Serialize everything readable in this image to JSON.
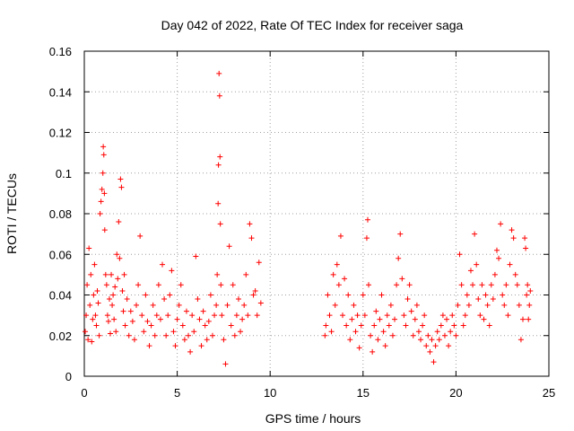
{
  "chart_data": {
    "type": "scatter",
    "title": "Day 042 of 2022, Rate Of TEC Index for receiver saga",
    "xlabel": "GPS time / hours",
    "ylabel": "ROTI / TECUs",
    "xlim": [
      0,
      25
    ],
    "ylim": [
      0,
      0.16
    ],
    "xticks": [
      0,
      5,
      10,
      15,
      20,
      25
    ],
    "xtick_labels": [
      "0",
      "5",
      "10",
      "15",
      "20",
      "25"
    ],
    "yticks": [
      0,
      0.02,
      0.04,
      0.06,
      0.08,
      0.1,
      0.12,
      0.14,
      0.16
    ],
    "ytick_labels": [
      "0",
      "0.02",
      "0.04",
      "0.06",
      "0.08",
      "0.1",
      "0.12",
      "0.14",
      "0.16"
    ],
    "grid": true,
    "marker": "+",
    "color": "#ff0000",
    "series": [
      {
        "name": "ROTI",
        "points": [
          [
            0.05,
            0.022
          ],
          [
            0.1,
            0.03
          ],
          [
            0.15,
            0.045
          ],
          [
            0.2,
            0.018
          ],
          [
            0.25,
            0.063
          ],
          [
            0.3,
            0.035
          ],
          [
            0.35,
            0.05
          ],
          [
            0.4,
            0.017
          ],
          [
            0.45,
            0.028
          ],
          [
            0.5,
            0.04
          ],
          [
            0.55,
            0.055
          ],
          [
            0.6,
            0.03
          ],
          [
            0.65,
            0.025
          ],
          [
            0.7,
            0.042
          ],
          [
            0.75,
            0.036
          ],
          [
            0.8,
            0.02
          ],
          [
            0.85,
            0.08
          ],
          [
            0.9,
            0.086
          ],
          [
            0.95,
            0.092
          ],
          [
            1.0,
            0.1
          ],
          [
            1.02,
            0.113
          ],
          [
            1.05,
            0.109
          ],
          [
            1.08,
            0.09
          ],
          [
            1.1,
            0.072
          ],
          [
            1.15,
            0.05
          ],
          [
            1.2,
            0.045
          ],
          [
            1.25,
            0.03
          ],
          [
            1.3,
            0.027
          ],
          [
            1.35,
            0.038
          ],
          [
            1.4,
            0.021
          ],
          [
            1.45,
            0.05
          ],
          [
            1.5,
            0.035
          ],
          [
            1.55,
            0.04
          ],
          [
            1.6,
            0.028
          ],
          [
            1.65,
            0.044
          ],
          [
            1.7,
            0.022
          ],
          [
            1.75,
            0.06
          ],
          [
            1.8,
            0.048
          ],
          [
            1.85,
            0.076
          ],
          [
            1.9,
            0.058
          ],
          [
            1.95,
            0.097
          ],
          [
            2.0,
            0.093
          ],
          [
            2.05,
            0.042
          ],
          [
            2.1,
            0.032
          ],
          [
            2.15,
            0.05
          ],
          [
            2.2,
            0.025
          ],
          [
            2.3,
            0.038
          ],
          [
            2.4,
            0.02
          ],
          [
            2.5,
            0.032
          ],
          [
            2.6,
            0.027
          ],
          [
            2.7,
            0.018
          ],
          [
            2.8,
            0.035
          ],
          [
            2.9,
            0.045
          ],
          [
            3.0,
            0.069
          ],
          [
            3.1,
            0.03
          ],
          [
            3.2,
            0.022
          ],
          [
            3.3,
            0.04
          ],
          [
            3.4,
            0.027
          ],
          [
            3.5,
            0.015
          ],
          [
            3.6,
            0.025
          ],
          [
            3.7,
            0.035
          ],
          [
            3.8,
            0.02
          ],
          [
            3.9,
            0.03
          ],
          [
            4.0,
            0.045
          ],
          [
            4.1,
            0.028
          ],
          [
            4.2,
            0.055
          ],
          [
            4.3,
            0.038
          ],
          [
            4.4,
            0.02
          ],
          [
            4.5,
            0.03
          ],
          [
            4.6,
            0.04
          ],
          [
            4.7,
            0.052
          ],
          [
            4.8,
            0.022
          ],
          [
            4.9,
            0.015
          ],
          [
            5.0,
            0.028
          ],
          [
            5.1,
            0.035
          ],
          [
            5.2,
            0.045
          ],
          [
            5.3,
            0.025
          ],
          [
            5.4,
            0.018
          ],
          [
            5.5,
            0.032
          ],
          [
            5.6,
            0.02
          ],
          [
            5.7,
            0.012
          ],
          [
            5.8,
            0.03
          ],
          [
            5.9,
            0.022
          ],
          [
            6.0,
            0.059
          ],
          [
            6.1,
            0.038
          ],
          [
            6.2,
            0.028
          ],
          [
            6.3,
            0.015
          ],
          [
            6.4,
            0.032
          ],
          [
            6.5,
            0.025
          ],
          [
            6.6,
            0.018
          ],
          [
            6.7,
            0.027
          ],
          [
            6.8,
            0.04
          ],
          [
            6.9,
            0.02
          ],
          [
            7.0,
            0.03
          ],
          [
            7.1,
            0.035
          ],
          [
            7.15,
            0.05
          ],
          [
            7.2,
            0.085
          ],
          [
            7.22,
            0.104
          ],
          [
            7.25,
            0.149
          ],
          [
            7.28,
            0.138
          ],
          [
            7.3,
            0.108
          ],
          [
            7.32,
            0.075
          ],
          [
            7.35,
            0.045
          ],
          [
            7.4,
            0.03
          ],
          [
            7.5,
            0.018
          ],
          [
            7.6,
            0.006
          ],
          [
            7.7,
            0.035
          ],
          [
            7.8,
            0.064
          ],
          [
            7.9,
            0.025
          ],
          [
            8.0,
            0.045
          ],
          [
            8.1,
            0.02
          ],
          [
            8.2,
            0.03
          ],
          [
            8.3,
            0.038
          ],
          [
            8.4,
            0.022
          ],
          [
            8.5,
            0.028
          ],
          [
            8.6,
            0.035
          ],
          [
            8.7,
            0.05
          ],
          [
            8.8,
            0.03
          ],
          [
            8.9,
            0.075
          ],
          [
            9.0,
            0.068
          ],
          [
            9.1,
            0.04
          ],
          [
            9.2,
            0.042
          ],
          [
            9.3,
            0.03
          ],
          [
            9.4,
            0.056
          ],
          [
            9.5,
            0.036
          ],
          [
            12.95,
            0.02
          ],
          [
            13.0,
            0.025
          ],
          [
            13.1,
            0.04
          ],
          [
            13.2,
            0.03
          ],
          [
            13.3,
            0.022
          ],
          [
            13.4,
            0.05
          ],
          [
            13.5,
            0.035
          ],
          [
            13.6,
            0.055
          ],
          [
            13.7,
            0.045
          ],
          [
            13.8,
            0.069
          ],
          [
            13.9,
            0.03
          ],
          [
            14.0,
            0.048
          ],
          [
            14.1,
            0.025
          ],
          [
            14.2,
            0.04
          ],
          [
            14.3,
            0.018
          ],
          [
            14.4,
            0.028
          ],
          [
            14.5,
            0.035
          ],
          [
            14.6,
            0.022
          ],
          [
            14.7,
            0.03
          ],
          [
            14.8,
            0.014
          ],
          [
            14.9,
            0.025
          ],
          [
            15.0,
            0.04
          ],
          [
            15.1,
            0.03
          ],
          [
            15.2,
            0.068
          ],
          [
            15.25,
            0.077
          ],
          [
            15.3,
            0.045
          ],
          [
            15.4,
            0.02
          ],
          [
            15.5,
            0.012
          ],
          [
            15.6,
            0.025
          ],
          [
            15.7,
            0.032
          ],
          [
            15.8,
            0.018
          ],
          [
            15.9,
            0.028
          ],
          [
            16.0,
            0.04
          ],
          [
            16.1,
            0.022
          ],
          [
            16.2,
            0.015
          ],
          [
            16.3,
            0.03
          ],
          [
            16.4,
            0.025
          ],
          [
            16.5,
            0.035
          ],
          [
            16.6,
            0.02
          ],
          [
            16.7,
            0.028
          ],
          [
            16.8,
            0.045
          ],
          [
            16.9,
            0.058
          ],
          [
            17.0,
            0.07
          ],
          [
            17.1,
            0.048
          ],
          [
            17.2,
            0.03
          ],
          [
            17.3,
            0.025
          ],
          [
            17.4,
            0.038
          ],
          [
            17.5,
            0.045
          ],
          [
            17.6,
            0.032
          ],
          [
            17.7,
            0.02
          ],
          [
            17.8,
            0.028
          ],
          [
            17.9,
            0.035
          ],
          [
            18.0,
            0.022
          ],
          [
            18.1,
            0.018
          ],
          [
            18.2,
            0.025
          ],
          [
            18.3,
            0.03
          ],
          [
            18.4,
            0.015
          ],
          [
            18.5,
            0.02
          ],
          [
            18.6,
            0.012
          ],
          [
            18.7,
            0.018
          ],
          [
            18.8,
            0.007
          ],
          [
            18.9,
            0.015
          ],
          [
            19.0,
            0.022
          ],
          [
            19.1,
            0.018
          ],
          [
            19.2,
            0.025
          ],
          [
            19.3,
            0.03
          ],
          [
            19.4,
            0.02
          ],
          [
            19.5,
            0.028
          ],
          [
            19.6,
            0.015
          ],
          [
            19.7,
            0.022
          ],
          [
            19.8,
            0.03
          ],
          [
            19.9,
            0.025
          ],
          [
            20.0,
            0.02
          ],
          [
            20.1,
            0.035
          ],
          [
            20.2,
            0.06
          ],
          [
            20.3,
            0.045
          ],
          [
            20.4,
            0.025
          ],
          [
            20.5,
            0.03
          ],
          [
            20.6,
            0.04
          ],
          [
            20.7,
            0.035
          ],
          [
            20.8,
            0.052
          ],
          [
            20.9,
            0.045
          ],
          [
            21.0,
            0.07
          ],
          [
            21.1,
            0.055
          ],
          [
            21.2,
            0.038
          ],
          [
            21.3,
            0.03
          ],
          [
            21.4,
            0.045
          ],
          [
            21.5,
            0.028
          ],
          [
            21.6,
            0.04
          ],
          [
            21.7,
            0.035
          ],
          [
            21.8,
            0.025
          ],
          [
            21.9,
            0.045
          ],
          [
            22.0,
            0.038
          ],
          [
            22.1,
            0.05
          ],
          [
            22.2,
            0.062
          ],
          [
            22.3,
            0.058
          ],
          [
            22.4,
            0.075
          ],
          [
            22.5,
            0.04
          ],
          [
            22.6,
            0.035
          ],
          [
            22.7,
            0.045
          ],
          [
            22.8,
            0.03
          ],
          [
            22.9,
            0.055
          ],
          [
            23.0,
            0.072
          ],
          [
            23.1,
            0.068
          ],
          [
            23.2,
            0.05
          ],
          [
            23.3,
            0.045
          ],
          [
            23.4,
            0.035
          ],
          [
            23.5,
            0.018
          ],
          [
            23.6,
            0.028
          ],
          [
            23.7,
            0.068
          ],
          [
            23.75,
            0.063
          ],
          [
            23.8,
            0.04
          ],
          [
            23.85,
            0.045
          ],
          [
            23.9,
            0.028
          ],
          [
            23.95,
            0.035
          ],
          [
            24.0,
            0.042
          ]
        ]
      }
    ]
  }
}
